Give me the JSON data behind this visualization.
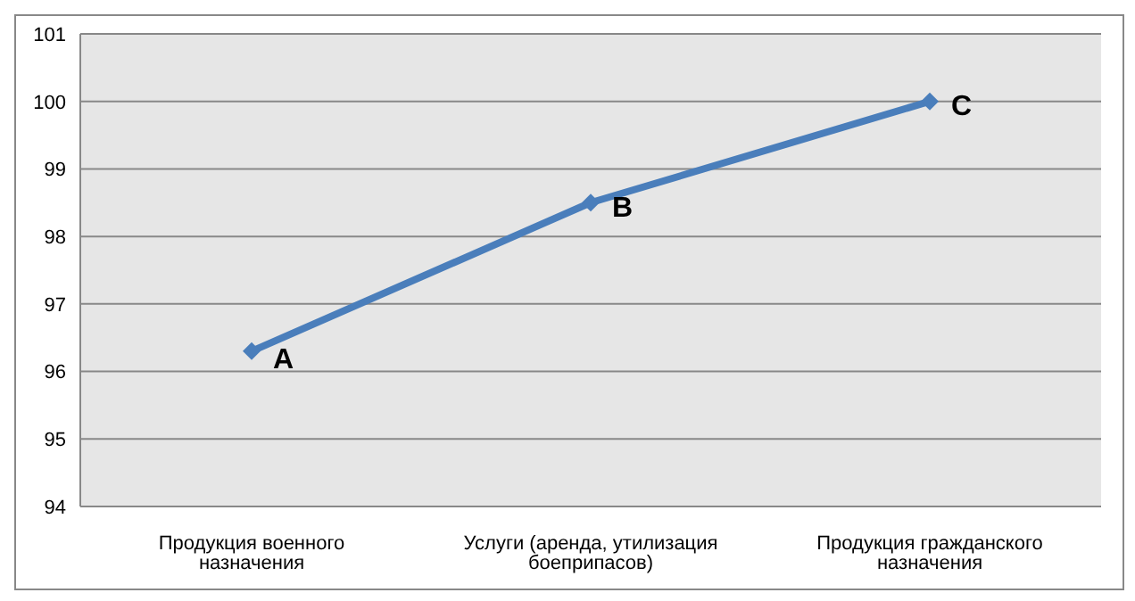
{
  "chart_data": {
    "type": "line",
    "categories": [
      "Продукция военного назначения",
      "Услуги (аренда, утилизация боеприпасов)",
      "Продукция гражданского назначения"
    ],
    "series": [
      {
        "color": "#4a7ebb",
        "values": [
          96.3,
          98.5,
          100
        ]
      }
    ],
    "ylim": [
      94,
      101
    ],
    "yticks": [
      94,
      95,
      96,
      97,
      98,
      99,
      100,
      101
    ],
    "grid": "y",
    "marker": "diamond",
    "legend": false,
    "annotations": [
      {
        "text": "A",
        "x": "Продукция военного назначения",
        "y": 96.3
      },
      {
        "text": "B",
        "x": "Услуги (аренда, утилизация боеприпасов)",
        "y": 98.5
      },
      {
        "text": "C",
        "x": "Продукция гражданского назначения",
        "y": 100
      }
    ]
  }
}
